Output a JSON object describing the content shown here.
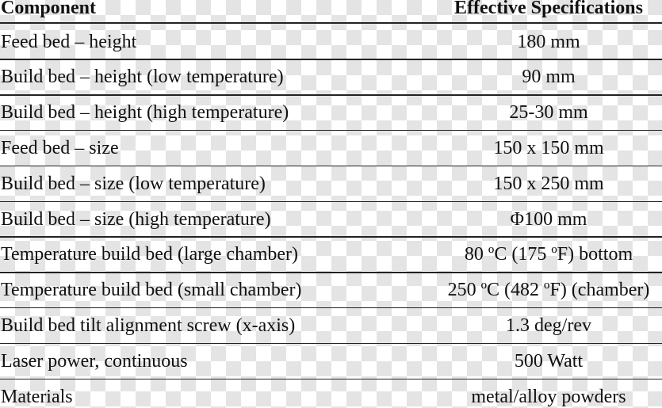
{
  "table": {
    "header": [
      "Component",
      "Effective Specifications"
    ],
    "rows": [
      [
        "Feed bed – height",
        "180 mm"
      ],
      [
        "Build bed – height (low temperature)",
        "90 mm"
      ],
      [
        "Build bed – height (high temperature)",
        "25-30 mm"
      ],
      [
        "Feed bed – size",
        "150 x 150 mm"
      ],
      [
        "Build bed – size (low temperature)",
        "150 x 250 mm"
      ],
      [
        "Build bed – size (high temperature)",
        "Φ100 mm"
      ],
      [
        "Temperature build bed (large chamber)",
        "80 ºC (175 ºF) bottom"
      ],
      [
        "Temperature build bed (small chamber)",
        "250 ºC (482 ºF) (chamber)"
      ],
      [
        "Build bed tilt alignment screw (x-axis)",
        "1.3 deg/rev"
      ],
      [
        "Laser power, continuous",
        "500 Watt"
      ],
      [
        "Materials",
        "metal/alloy powders"
      ]
    ]
  }
}
